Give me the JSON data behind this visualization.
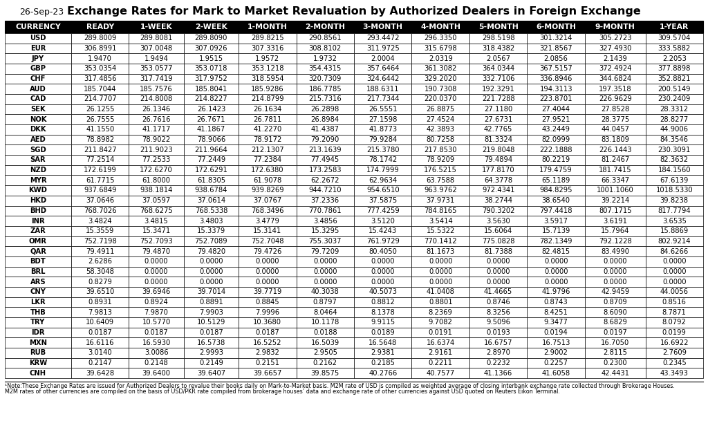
{
  "title": "Exchange Rates for Mark to Market Revaluation by Authorized Dealers in Foreign Exchange",
  "date": "26-Sep-23",
  "columns": [
    "CURRENCY",
    "READY",
    "1-WEEK",
    "2-WEEK",
    "1-MONTH",
    "2-MONTH",
    "3-MONTH",
    "4-MONTH",
    "5-MONTH",
    "6-MONTH",
    "9-MONTH",
    "1-YEAR"
  ],
  "rows": [
    [
      "USD",
      "289.8009",
      "289.8081",
      "289.8090",
      "289.8215",
      "290.8561",
      "293.4472",
      "296.3350",
      "298.5198",
      "301.3214",
      "305.2723",
      "309.5704"
    ],
    [
      "EUR",
      "306.8991",
      "307.0048",
      "307.0926",
      "307.3316",
      "308.8102",
      "311.9725",
      "315.6798",
      "318.4382",
      "321.8567",
      "327.4930",
      "333.5882"
    ],
    [
      "JPY",
      "1.9470",
      "1.9494",
      "1.9515",
      "1.9572",
      "1.9732",
      "2.0004",
      "2.0319",
      "2.0567",
      "2.0856",
      "2.1439",
      "2.2053"
    ],
    [
      "GBP",
      "353.0354",
      "353.0577",
      "353.0718",
      "353.1218",
      "354.4315",
      "357.6464",
      "361.3082",
      "364.0344",
      "367.5157",
      "372.4924",
      "377.8898"
    ],
    [
      "CHF",
      "317.4856",
      "317.7419",
      "317.9752",
      "318.5954",
      "320.7309",
      "324.6442",
      "329.2020",
      "332.7106",
      "336.8946",
      "344.6824",
      "352.8821"
    ],
    [
      "AUD",
      "185.7044",
      "185.7576",
      "185.8041",
      "185.9286",
      "186.7785",
      "188.6311",
      "190.7308",
      "192.3291",
      "194.3113",
      "197.3518",
      "200.5149"
    ],
    [
      "CAD",
      "214.7707",
      "214.8008",
      "214.8227",
      "214.8799",
      "215.7316",
      "217.7344",
      "220.0370",
      "221.7288",
      "223.8701",
      "226.9629",
      "230.2409"
    ],
    [
      "SEK",
      "26.1255",
      "26.1346",
      "26.1423",
      "26.1634",
      "26.2898",
      "26.5551",
      "26.8875",
      "27.1180",
      "27.4044",
      "27.8528",
      "28.3312"
    ],
    [
      "NOK",
      "26.7555",
      "26.7616",
      "26.7671",
      "26.7811",
      "26.8984",
      "27.1598",
      "27.4524",
      "27.6731",
      "27.9521",
      "28.3775",
      "28.8277"
    ],
    [
      "DKK",
      "41.1550",
      "41.1717",
      "41.1867",
      "41.2270",
      "41.4387",
      "41.8773",
      "42.3893",
      "42.7765",
      "43.2449",
      "44.0457",
      "44.9006"
    ],
    [
      "AED",
      "78.8982",
      "78.9022",
      "78.9066",
      "78.9172",
      "79.2090",
      "79.9284",
      "80.7258",
      "81.3324",
      "82.0999",
      "83.1809",
      "84.3546"
    ],
    [
      "SGD",
      "211.8427",
      "211.9023",
      "211.9664",
      "212.1307",
      "213.1639",
      "215.3780",
      "217.8530",
      "219.8048",
      "222.1888",
      "226.1443",
      "230.3091"
    ],
    [
      "SAR",
      "77.2514",
      "77.2533",
      "77.2449",
      "77.2384",
      "77.4945",
      "78.1742",
      "78.9209",
      "79.4894",
      "80.2219",
      "81.2467",
      "82.3632"
    ],
    [
      "NZD",
      "172.6199",
      "172.6270",
      "172.6291",
      "172.6380",
      "173.2583",
      "174.7999",
      "176.5215",
      "177.8170",
      "179.4759",
      "181.7415",
      "184.1560"
    ],
    [
      "MYR",
      "61.7715",
      "61.8000",
      "61.8305",
      "61.9078",
      "62.2672",
      "62.9634",
      "63.7588",
      "64.3778",
      "65.1189",
      "66.3347",
      "67.6139"
    ],
    [
      "KWD",
      "937.6849",
      "938.1814",
      "938.6784",
      "939.8269",
      "944.7210",
      "954.6510",
      "963.9762",
      "972.4341",
      "984.8295",
      "1001.1060",
      "1018.5330"
    ],
    [
      "HKD",
      "37.0646",
      "37.0597",
      "37.0614",
      "37.0767",
      "37.2336",
      "37.5875",
      "37.9731",
      "38.2744",
      "38.6540",
      "39.2214",
      "39.8238"
    ],
    [
      "BHD",
      "768.7026",
      "768.6275",
      "768.5338",
      "768.3496",
      "770.7861",
      "777.4259",
      "784.8165",
      "790.3202",
      "797.4418",
      "807.1715",
      "817.7794"
    ],
    [
      "INR",
      "3.4824",
      "3.4815",
      "3.4803",
      "3.4779",
      "3.4856",
      "3.5120",
      "3.5414",
      "3.5630",
      "3.5917",
      "3.6191",
      "3.6535"
    ],
    [
      "ZAR",
      "15.3559",
      "15.3471",
      "15.3379",
      "15.3141",
      "15.3295",
      "15.4243",
      "15.5322",
      "15.6064",
      "15.7139",
      "15.7964",
      "15.8869"
    ],
    [
      "OMR",
      "752.7198",
      "752.7093",
      "752.7089",
      "752.7048",
      "755.3037",
      "761.9729",
      "770.1412",
      "775.0828",
      "782.1349",
      "792.1228",
      "802.9214"
    ],
    [
      "QAR",
      "79.4911",
      "79.4870",
      "79.4820",
      "79.4726",
      "79.7209",
      "80.4050",
      "81.1673",
      "81.7388",
      "82.4815",
      "83.4990",
      "84.6266"
    ],
    [
      "BDT",
      "2.6286",
      "0.0000",
      "0.0000",
      "0.0000",
      "0.0000",
      "0.0000",
      "0.0000",
      "0.0000",
      "0.0000",
      "0.0000",
      "0.0000"
    ],
    [
      "BRL",
      "58.3048",
      "0.0000",
      "0.0000",
      "0.0000",
      "0.0000",
      "0.0000",
      "0.0000",
      "0.0000",
      "0.0000",
      "0.0000",
      "0.0000"
    ],
    [
      "ARS",
      "0.8279",
      "0.0000",
      "0.0000",
      "0.0000",
      "0.0000",
      "0.0000",
      "0.0000",
      "0.0000",
      "0.0000",
      "0.0000",
      "0.0000"
    ],
    [
      "CNY",
      "39.6510",
      "39.6946",
      "39.7014",
      "39.7719",
      "40.3038",
      "40.5073",
      "41.0408",
      "41.4665",
      "41.9796",
      "42.9459",
      "44.0056"
    ],
    [
      "LKR",
      "0.8931",
      "0.8924",
      "0.8891",
      "0.8845",
      "0.8797",
      "0.8812",
      "0.8801",
      "0.8746",
      "0.8743",
      "0.8709",
      "0.8516"
    ],
    [
      "THB",
      "7.9813",
      "7.9870",
      "7.9903",
      "7.9996",
      "8.0464",
      "8.1378",
      "8.2369",
      "8.3256",
      "8.4251",
      "8.6090",
      "8.7871"
    ],
    [
      "TRY",
      "10.6409",
      "10.5770",
      "10.5129",
      "10.3680",
      "10.1178",
      "9.9115",
      "9.7082",
      "9.5096",
      "9.3477",
      "8.6829",
      "8.0792"
    ],
    [
      "IDR",
      "0.0187",
      "0.0187",
      "0.0187",
      "0.0187",
      "0.0188",
      "0.0189",
      "0.0191",
      "0.0193",
      "0.0194",
      "0.0197",
      "0.0199"
    ],
    [
      "MXN",
      "16.6116",
      "16.5930",
      "16.5738",
      "16.5252",
      "16.5039",
      "16.5648",
      "16.6374",
      "16.6757",
      "16.7513",
      "16.7050",
      "16.6922"
    ],
    [
      "RUB",
      "3.0140",
      "3.0086",
      "2.9993",
      "2.9832",
      "2.9505",
      "2.9381",
      "2.9161",
      "2.8970",
      "2.9002",
      "2.8115",
      "2.7609"
    ],
    [
      "KRW",
      "0.2147",
      "0.2148",
      "0.2149",
      "0.2151",
      "0.2162",
      "0.2185",
      "0.2211",
      "0.2232",
      "0.2257",
      "0.2300",
      "0.2345"
    ],
    [
      "CNH",
      "39.6428",
      "39.6400",
      "39.6407",
      "39.6657",
      "39.8575",
      "40.2766",
      "40.7577",
      "41.1366",
      "41.6058",
      "42.4431",
      "43.3493"
    ]
  ],
  "footnote_line1": "¹Note:These Exchange Rates are issued for Authorized Dealers to revalue their books daily on Mark-to-Market basis. M2M rate of USD is compiled as weighted average of closing interbank exchange rate collected through Brokerage Houses.",
  "footnote_line2": "M2M rates of other currencies are compiled on the basis of USD/PKR rate compiled from brokerage houses’ data and exchange rate of other currencies against USD quoted on Reuters Eikon Terminal.",
  "header_bg": "#000000",
  "header_fg": "#ffffff",
  "border_color": "#000000",
  "title_fontsize": 11.5,
  "date_fontsize": 9,
  "header_fontsize": 7.8,
  "data_fontsize": 7.2,
  "footnote_fontsize": 5.8
}
